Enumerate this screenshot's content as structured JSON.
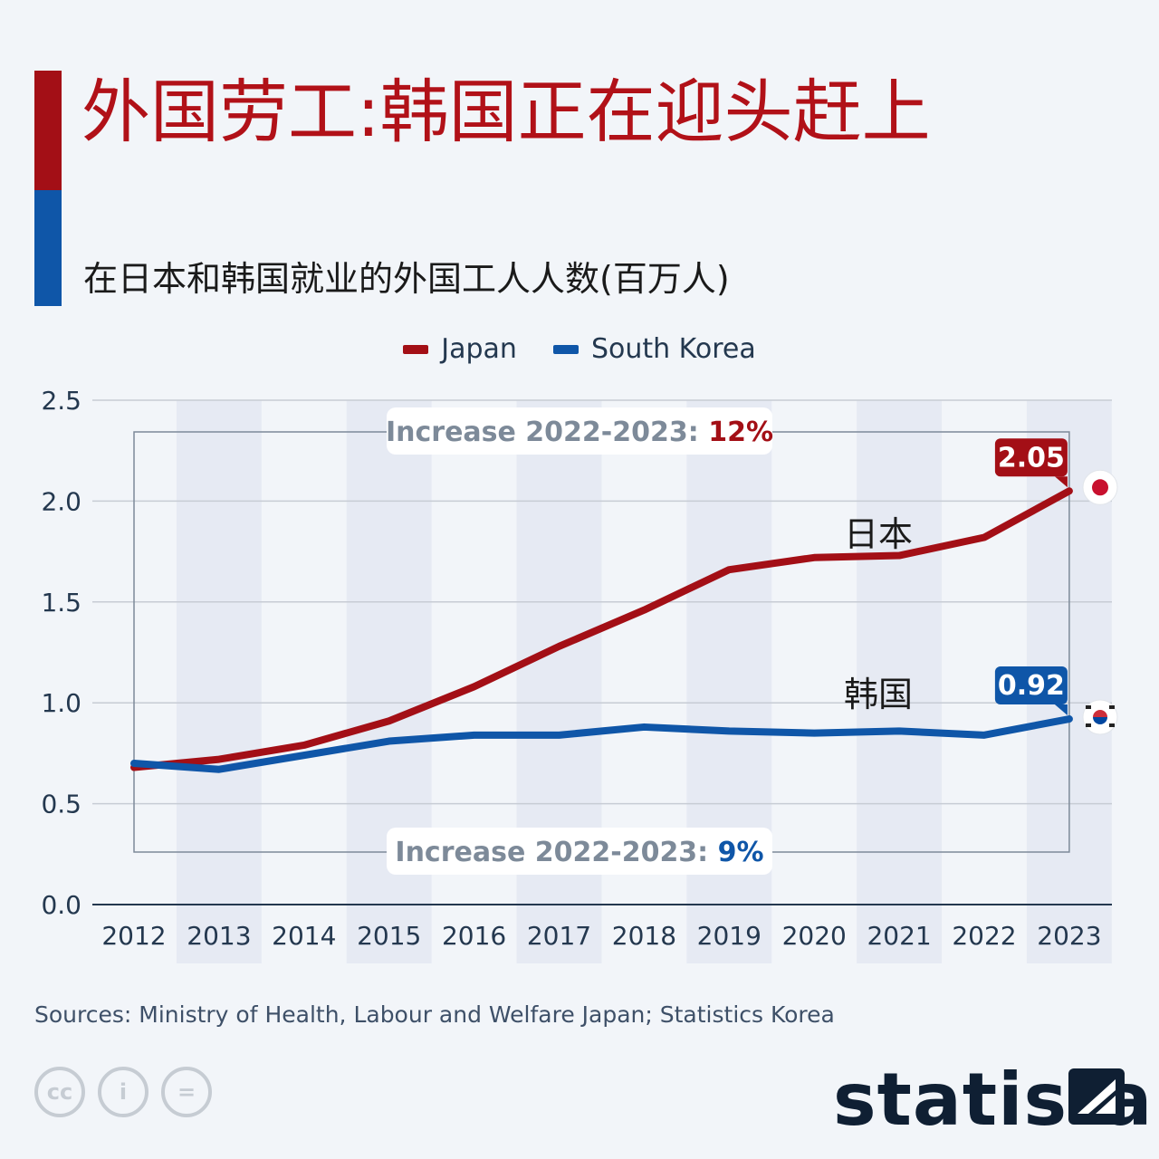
{
  "header": {
    "title": "外国劳工:韩国正在迎头赶上",
    "subtitle": "在日本和韩国就业的外国工人人数(百万人)"
  },
  "colors": {
    "japan": "#a30f16",
    "korea": "#0f56a8",
    "grid": "#c7ccd4",
    "band": "#e6eaf3"
  },
  "chart_data": {
    "type": "line",
    "x": [
      "2012",
      "2013",
      "2014",
      "2015",
      "2016",
      "2017",
      "2018",
      "2019",
      "2020",
      "2021",
      "2022",
      "2023"
    ],
    "ylim": [
      0,
      2.5
    ],
    "yticks": [
      "0.0",
      "0.5",
      "1.0",
      "1.5",
      "2.0",
      "2.5"
    ],
    "series": [
      {
        "name": "Japan",
        "values": [
          0.68,
          0.72,
          0.79,
          0.91,
          1.08,
          1.28,
          1.46,
          1.66,
          1.72,
          1.73,
          1.82,
          2.05
        ]
      },
      {
        "name": "South Korea",
        "values": [
          0.7,
          0.67,
          0.74,
          0.81,
          0.84,
          0.84,
          0.88,
          0.86,
          0.85,
          0.86,
          0.84,
          0.92
        ]
      }
    ],
    "end_labels": {
      "japan": "2.05",
      "korea": "0.92"
    },
    "series_labels": {
      "japan": "日本",
      "korea": "韩国"
    },
    "annotations": {
      "japan": {
        "text": "Increase 2022-2023: ",
        "value": "12%"
      },
      "korea": {
        "text": "Increase 2022-2023: ",
        "value": "9%"
      }
    }
  },
  "footer": {
    "source": "Sources: Ministry of Health, Labour and Welfare Japan; Statistics Korea",
    "cc_icons": [
      "cc",
      "i",
      "="
    ],
    "brand": "statista"
  }
}
